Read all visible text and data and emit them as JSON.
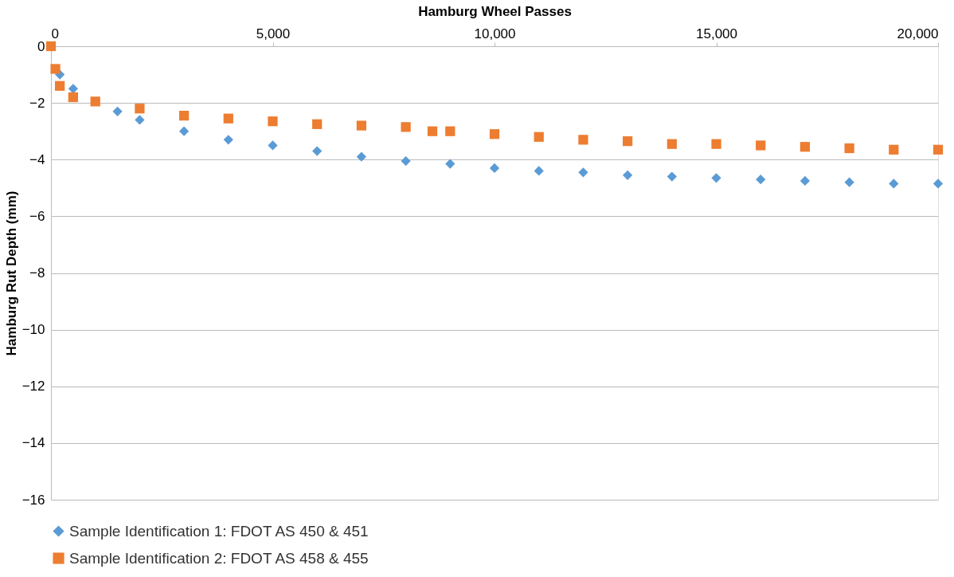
{
  "chart_data": {
    "type": "scatter",
    "xlabel": "Hamburg Wheel Passes",
    "ylabel": "Hamburg Rut Depth (mm)",
    "xlim": [
      0,
      20000
    ],
    "ylim": [
      -16,
      0
    ],
    "xticks": [
      0,
      {
        "value": 5000,
        "label": "5,000"
      },
      {
        "value": 10000,
        "label": "10,000"
      },
      {
        "value": 15000,
        "label": "15,000"
      },
      {
        "value": 20000,
        "label": "20,000"
      }
    ],
    "yticks": [
      -16,
      -14,
      -12,
      -10,
      -8,
      -6,
      -4,
      -2,
      0
    ],
    "grid": "y",
    "legend": "bottom",
    "series": [
      {
        "name": "Sample Identification 1: FDOT AS 450 & 451",
        "color": "#5b9bd5",
        "marker": "diamond",
        "x": [
          200,
          500,
          1000,
          1500,
          2000,
          3000,
          4000,
          5000,
          6000,
          7000,
          8000,
          9000,
          10000,
          11000,
          12000,
          13000,
          14000,
          15000,
          16000,
          17000,
          18000,
          19000,
          20000
        ],
        "values": [
          -1.0,
          -1.5,
          null,
          -2.3,
          -2.6,
          -3.0,
          -3.3,
          -3.5,
          -3.7,
          -3.9,
          -4.05,
          -4.15,
          -4.3,
          -4.4,
          -4.45,
          -4.55,
          -4.6,
          -4.65,
          -4.7,
          -4.75,
          -4.8,
          -4.85,
          -4.85
        ]
      },
      {
        "name": "Sample Identification 2: FDOT AS 458 & 455",
        "color": "#ed7d31",
        "marker": "square",
        "x": [
          0,
          100,
          200,
          500,
          1000,
          2000,
          3000,
          4000,
          5000,
          6000,
          7000,
          8000,
          8600,
          9000,
          10000,
          11000,
          12000,
          13000,
          14000,
          15000,
          16000,
          17000,
          18000,
          19000,
          20000
        ],
        "values": [
          0,
          -0.8,
          -1.4,
          -1.8,
          -1.95,
          -2.2,
          -2.45,
          -2.55,
          -2.65,
          -2.75,
          -2.8,
          -2.85,
          -3.0,
          -3.0,
          -3.1,
          -3.2,
          -3.3,
          -3.35,
          -3.45,
          -3.45,
          -3.5,
          -3.55,
          -3.6,
          -3.65,
          -3.65
        ]
      }
    ]
  }
}
